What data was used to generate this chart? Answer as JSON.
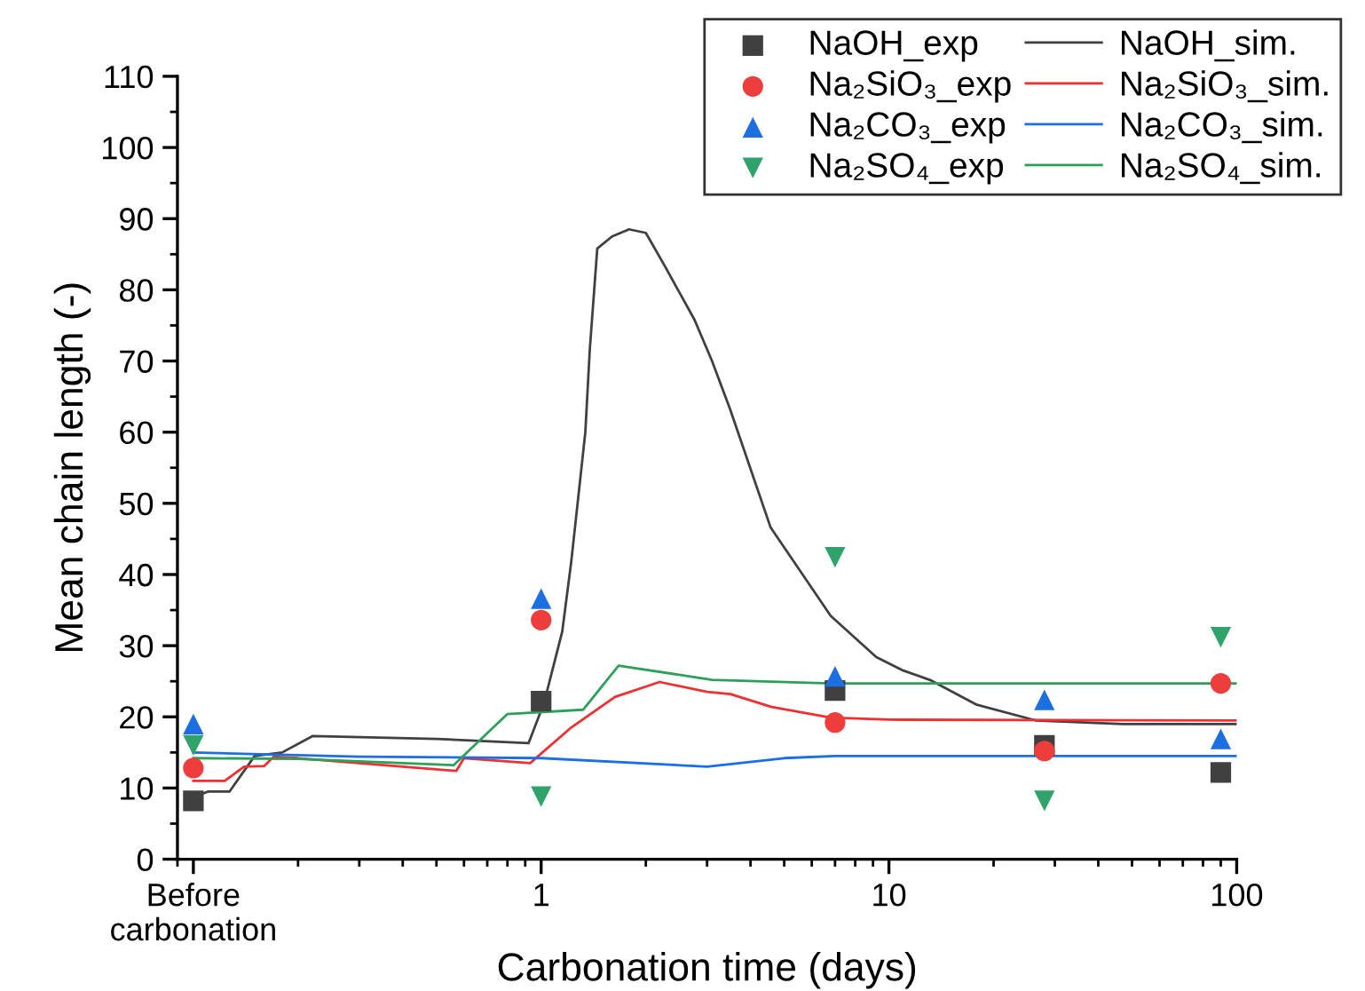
{
  "chart_data": {
    "type": "scatter",
    "xlabel": "Carbonation time (days)",
    "ylabel": "Mean chain length (-)",
    "log": "x",
    "xlim": [
      0.09,
      100
    ],
    "xticks": [
      {
        "value": 0.1,
        "label": "Before\ncarbonation"
      },
      1,
      10,
      100
    ],
    "ylim": [
      0,
      110
    ],
    "yticks": [
      0,
      10,
      20,
      30,
      40,
      50,
      60,
      70,
      80,
      90,
      100,
      110
    ],
    "grid": false,
    "legend": "top right",
    "series": [
      {
        "name": "NaOH_exp",
        "marker": "square",
        "color": "#404040",
        "x": [
          0.1,
          1,
          7,
          28,
          90
        ],
        "values": [
          8.2,
          22.2,
          23.7,
          16,
          12.2
        ]
      },
      {
        "name": "Na₂SiO₃_exp",
        "marker": "circle",
        "color": "#ee3d3d",
        "x": [
          0.1,
          1,
          7,
          28,
          90
        ],
        "values": [
          12.8,
          33.6,
          19.2,
          15.2,
          24.7
        ]
      },
      {
        "name": "Na₂CO₃_exp",
        "marker": "triangle",
        "color": "#1c6fe0",
        "x": [
          0.1,
          1,
          7,
          28,
          90
        ],
        "values": [
          19,
          36.6,
          25.7,
          22.4,
          16.9
        ]
      },
      {
        "name": "Na₂SO₄_exp",
        "marker": "triangle_down",
        "color": "#2fa36a",
        "x": [
          0.1,
          1,
          7,
          28,
          90
        ],
        "values": [
          16,
          8.8,
          42.4,
          8.2,
          31.2
        ]
      },
      {
        "name": "NaOH_sim.",
        "type": "line",
        "color": "#404040",
        "x": [
          0.1,
          0.11,
          0.127,
          0.15,
          0.18,
          0.22,
          0.5,
          0.92,
          1.02,
          1.15,
          1.22,
          1.34,
          1.38,
          1.45,
          1.6,
          1.79,
          2.0,
          2.27,
          2.76,
          3.1,
          3.49,
          4.57,
          6.8,
          9.2,
          11,
          13.1,
          17.9,
          26.4,
          47,
          100
        ],
        "values": [
          8.7,
          9.5,
          9.5,
          14.5,
          15,
          17.3,
          16.9,
          16.3,
          22,
          32,
          41.7,
          60,
          71.6,
          85.8,
          87.5,
          88.5,
          88,
          83.3,
          75.8,
          70,
          63.3,
          46.6,
          34.2,
          28.4,
          26.5,
          25.2,
          21.7,
          19.5,
          19,
          19
        ]
      },
      {
        "name": "Na₂SiO₃_sim.",
        "type": "line",
        "color": "#f03030",
        "x": [
          0.1,
          0.123,
          0.14,
          0.16,
          0.17,
          0.2,
          0.57,
          0.6,
          0.93,
          1.22,
          1.63,
          2.19,
          3.0,
          3.5,
          4.6,
          6.8,
          10,
          100
        ],
        "values": [
          11,
          11,
          13,
          13.1,
          14.4,
          14.2,
          12.4,
          14.2,
          13.5,
          18.5,
          22.8,
          24.9,
          23.5,
          23.2,
          21.4,
          19.9,
          19.6,
          19.5
        ]
      },
      {
        "name": "Na₂CO₃_sim.",
        "type": "line",
        "color": "#1a6ee6",
        "x": [
          0.1,
          0.3,
          1,
          3.0,
          5,
          7,
          100
        ],
        "values": [
          15,
          14.4,
          14.2,
          13,
          14.2,
          14.5,
          14.5
        ]
      },
      {
        "name": "Na₂SO₄_sim.",
        "type": "line",
        "color": "#2ca05a",
        "x": [
          0.1,
          0.2,
          0.56,
          0.8,
          1.32,
          1.67,
          3.1,
          6.8,
          100
        ],
        "values": [
          14.2,
          14.1,
          13.2,
          20.4,
          21,
          27.2,
          25.2,
          24.7,
          24.7
        ]
      }
    ]
  }
}
